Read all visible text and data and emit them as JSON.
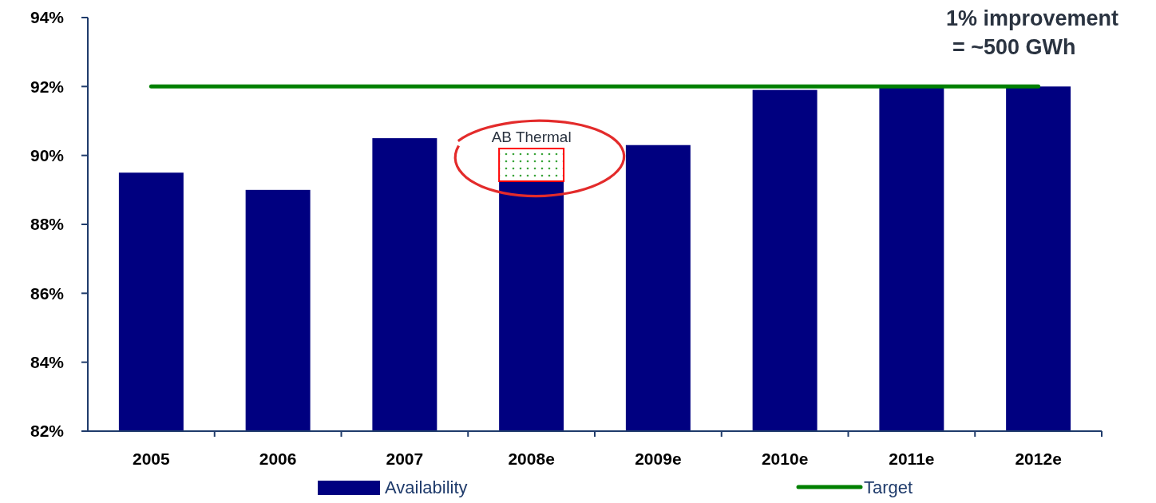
{
  "chart_data": {
    "type": "bar",
    "categories": [
      "2005",
      "2006",
      "2007",
      "2008e",
      "2009e",
      "2010e",
      "2011e",
      "2012e"
    ],
    "series": [
      {
        "name": "Availability",
        "color": "#000080",
        "values": [
          89.5,
          89,
          90.5,
          89.25,
          90.3,
          91.9,
          92,
          92
        ]
      },
      {
        "name": "AB Thermal",
        "color": "#3aa53a",
        "values": [
          null,
          null,
          null,
          0.95,
          null,
          null,
          null,
          null
        ],
        "base": [
          null,
          null,
          null,
          89.25,
          null,
          null,
          null,
          null
        ]
      },
      {
        "name": "Target",
        "type": "line",
        "color": "#008000",
        "values": [
          92,
          92,
          92,
          92,
          92,
          92,
          92,
          92
        ]
      }
    ],
    "ylim": [
      82,
      94
    ],
    "yticks": [
      {
        "value": 82,
        "label": "82%"
      },
      {
        "value": 84,
        "label": "84%"
      },
      {
        "value": 86,
        "label": "86%"
      },
      {
        "value": 88,
        "label": "88%"
      },
      {
        "value": 90,
        "label": "90%"
      },
      {
        "value": 92,
        "label": "92%"
      },
      {
        "value": 94,
        "label": "94%"
      }
    ],
    "grid": false,
    "legend": "bottom",
    "marker": "none",
    "line_style": "solid",
    "annotations": [
      "1% improvement\n= ~500 GWh"
    ]
  }
}
